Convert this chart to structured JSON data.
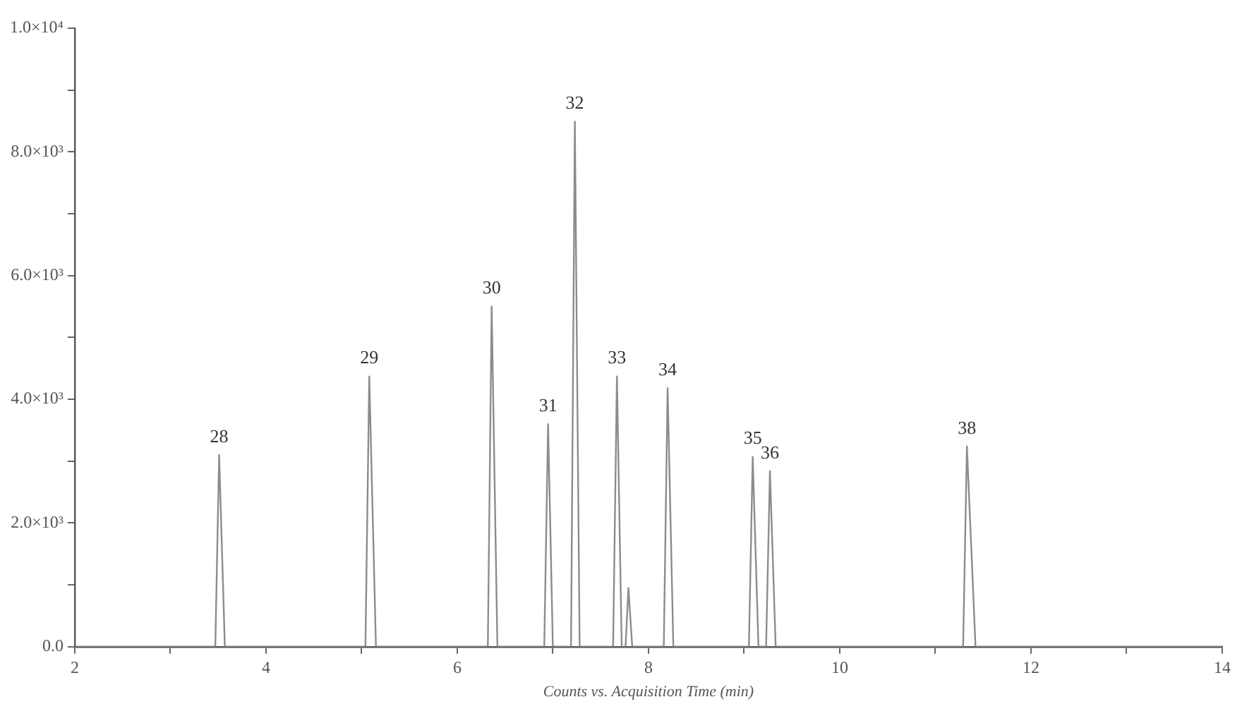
{
  "chart_data": {
    "type": "line",
    "xlabel": "Counts vs. Acquisition Time (min)",
    "x": [
      2,
      3.47,
      3.51,
      3.57,
      5.04,
      5.08,
      5.15,
      6.32,
      6.36,
      6.42,
      6.91,
      6.95,
      7.0,
      7.19,
      7.23,
      7.28,
      7.63,
      7.67,
      7.72,
      7.76,
      7.79,
      7.83,
      8.16,
      8.2,
      8.26,
      9.05,
      9.09,
      9.15,
      9.23,
      9.27,
      9.33,
      11.29,
      11.33,
      11.42,
      14
    ],
    "series": [
      {
        "color": "#8c8c8c",
        "values": [
          0,
          0,
          3100,
          0,
          0,
          4370,
          0,
          0,
          5500,
          0,
          0,
          3600,
          0,
          0,
          8490,
          0,
          0,
          4370,
          0,
          0,
          950,
          0,
          0,
          4180,
          0,
          0,
          3070,
          0,
          0,
          2840,
          0,
          0,
          3240,
          0,
          0
        ]
      }
    ],
    "xlim": [
      2,
      14
    ],
    "xticks": [
      2,
      {
        "value": 3,
        "label": null
      },
      4,
      {
        "value": 5,
        "label": null
      },
      6,
      {
        "value": 7,
        "label": null
      },
      8,
      {
        "value": 9,
        "label": null
      },
      10,
      {
        "value": 11,
        "label": null
      },
      12,
      {
        "value": 13,
        "label": null
      },
      14
    ],
    "ylim": [
      0,
      10000
    ],
    "yticks": [
      {
        "value": 0,
        "label": "0.0"
      },
      {
        "value": 1000,
        "label": null
      },
      {
        "value": 2000,
        "label": "2.0×10³"
      },
      {
        "value": 3000,
        "label": null
      },
      {
        "value": 4000,
        "label": "4.0×10³"
      },
      {
        "value": 5000,
        "label": null
      },
      {
        "value": 6000,
        "label": "6.0×10³"
      },
      {
        "value": 7000,
        "label": null
      },
      {
        "value": 8000,
        "label": "8.0×10³"
      },
      {
        "value": 9000,
        "label": null
      },
      {
        "value": 10000,
        "label": "1.0×10⁴"
      }
    ],
    "grid": false,
    "legend": false,
    "marker": "none",
    "line_style": "solid",
    "annotations": [
      {
        "text": "28",
        "x": 3.51,
        "y": 3100
      },
      {
        "text": "29",
        "x": 5.08,
        "y": 4370
      },
      {
        "text": "30",
        "x": 6.36,
        "y": 5500
      },
      {
        "text": "31",
        "x": 6.95,
        "y": 3600
      },
      {
        "text": "32",
        "x": 7.23,
        "y": 8490
      },
      {
        "text": "33",
        "x": 7.67,
        "y": 4370
      },
      {
        "text": "34",
        "x": 8.2,
        "y": 4180
      },
      {
        "text": "35",
        "x": 9.09,
        "y": 3070
      },
      {
        "text": "36",
        "x": 9.27,
        "y": 2840
      },
      {
        "text": "38",
        "x": 11.33,
        "y": 3240
      }
    ]
  }
}
